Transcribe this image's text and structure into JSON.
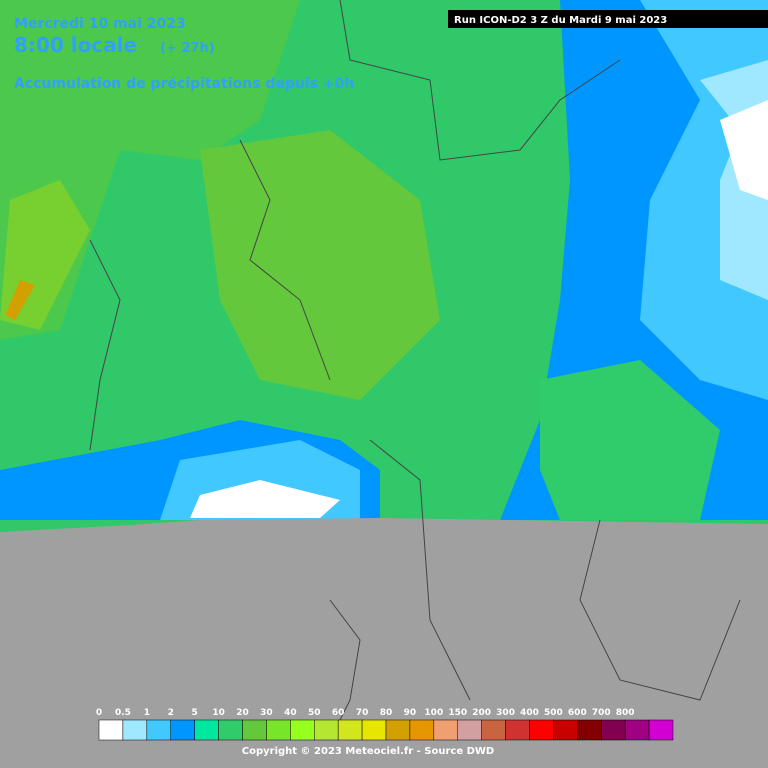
{
  "header": {
    "date": "Mercredi 10 mai 2023",
    "time": "8:00 locale",
    "lead": "(+ 27h)",
    "subtitle": "Accumulation de précipitations depuis +0h"
  },
  "run": "Run ICON-D2 3 Z du Mardi 9 mai 2023",
  "legend": {
    "labels": [
      0,
      0.5,
      1,
      2,
      5,
      10,
      20,
      30,
      40,
      50,
      60,
      70,
      80,
      90,
      100,
      150,
      200,
      300,
      400,
      500,
      600,
      700,
      800
    ],
    "colors": [
      "#ffffff",
      "#a0e8ff",
      "#40c8ff",
      "#0096ff",
      "#00e8a0",
      "#30cc6c",
      "#64c83c",
      "#78e628",
      "#96ff1e",
      "#b4e632",
      "#d2e61e",
      "#e6e600",
      "#d2a000",
      "#e69600",
      "#f0a070",
      "#d2a0a0",
      "#c86440",
      "#d03232",
      "#ff0000",
      "#c80000",
      "#820000",
      "#820050",
      "#a00082",
      "#d200d2"
    ]
  },
  "copyright": "Copyright © 2023 Meteociel.fr - Source DWD"
}
